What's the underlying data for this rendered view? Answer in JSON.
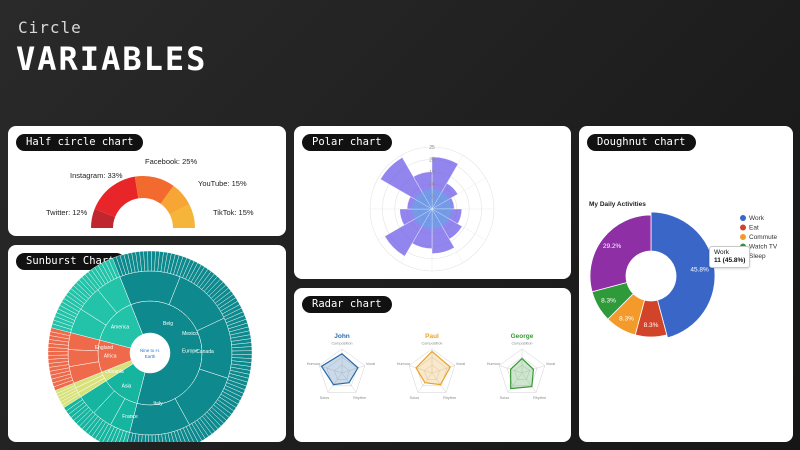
{
  "header": {
    "brand": "Circle",
    "title": "VARIABLES"
  },
  "cards": {
    "half_circle": {
      "label": "Half circle chart"
    },
    "polar": {
      "label": "Polar chart"
    },
    "doughnut": {
      "label": "Doughnut chart"
    },
    "sunburst": {
      "label": "Sunburst Chart"
    },
    "radar": {
      "label": "Radar chart"
    }
  },
  "colors": {
    "page_bg": "#1c1c1c",
    "card_bg": "#ffffff",
    "pill_bg": "#111111"
  },
  "chart_data": [
    {
      "id": "half_circle",
      "type": "pie",
      "title": "",
      "slices": [
        {
          "label": "Twitter: 12%",
          "value": 12,
          "color": "#c0262d"
        },
        {
          "label": "Instagram: 33%",
          "value": 33,
          "color": "#e8262a"
        },
        {
          "label": "Facebook: 25%",
          "value": 25,
          "color": "#f26a2e"
        },
        {
          "label": "YouTube: 15%",
          "value": 15,
          "color": "#f7a534"
        },
        {
          "label": "TikTok: 15%",
          "value": 15,
          "color": "#f5b53a"
        }
      ]
    },
    {
      "id": "polar",
      "type": "bar",
      "title": "",
      "tick_labels": [
        "25",
        "20",
        "15",
        "10",
        "5"
      ],
      "values": [
        21,
        12,
        9,
        12,
        14,
        18,
        16,
        22,
        13,
        10,
        24,
        15
      ],
      "color": "#6d5ce8"
    },
    {
      "id": "doughnut",
      "type": "pie",
      "title": "My Daily Activities",
      "slices": [
        {
          "label": "Work",
          "value": 11,
          "percent_label": "45.8%",
          "color": "#3a66c8"
        },
        {
          "label": "Eat",
          "value": 2,
          "percent_label": "8.3%",
          "color": "#d2442a"
        },
        {
          "label": "Commute",
          "value": 2,
          "percent_label": "8.3%",
          "color": "#f39a2a"
        },
        {
          "label": "Watch TV",
          "value": 2,
          "percent_label": "8.3%",
          "color": "#2f9a3a"
        },
        {
          "label": "Sleep",
          "value": 7,
          "percent_label": "29.2%",
          "color": "#8e2fa5"
        }
      ],
      "tooltip": {
        "name": "Work",
        "value_text": "11 (45.8%)"
      }
    },
    {
      "id": "sunburst",
      "type": "pie",
      "title": "",
      "center_label": [
        "Nine to H.",
        "Earth"
      ],
      "inner_ring": [
        {
          "label": "Europe",
          "value": 60,
          "color": "#0e8a8e"
        },
        {
          "label": "Asia",
          "value": 12,
          "color": "#16b5a0"
        },
        {
          "label": "Oceania",
          "value": 3,
          "color": "#d8e27a"
        },
        {
          "label": "Africa",
          "value": 10,
          "color": "#ef6a4a"
        },
        {
          "label": "America",
          "value": 15,
          "color": "#22c3a8"
        }
      ],
      "mid_ring_labels": [
        "England",
        "Italy",
        "France",
        "Canada",
        "Mexico",
        "Belg"
      ]
    },
    {
      "id": "radar",
      "type": "line",
      "title": "",
      "axes": [
        "Composition",
        "Vocal",
        "Rhythm",
        "Solos",
        "Humour"
      ],
      "series": [
        {
          "name": "John",
          "values": [
            8,
            7,
            5,
            6,
            9
          ],
          "color": "#2a6aa8"
        },
        {
          "name": "Paul",
          "values": [
            9,
            8,
            6,
            5,
            7
          ],
          "color": "#e8a42a"
        },
        {
          "name": "George",
          "values": [
            6,
            5,
            7,
            8,
            5
          ],
          "color": "#3a9a3a"
        }
      ]
    }
  ]
}
